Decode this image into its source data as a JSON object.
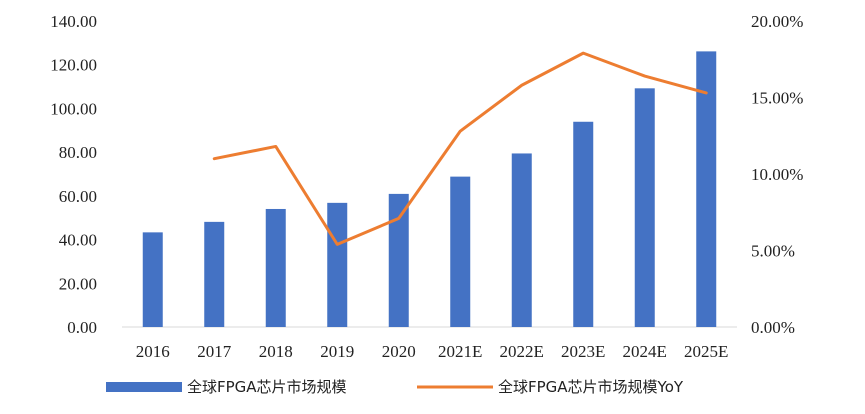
{
  "chart_data": {
    "type": "bar+line",
    "categories": [
      "2016",
      "2017",
      "2018",
      "2019",
      "2020",
      "2021E",
      "2022E",
      "2023E",
      "2024E",
      "2025E"
    ],
    "series": [
      {
        "name": "全球FPGA芯片市场规模",
        "type": "bar",
        "axis": "left",
        "color": "#4472C4",
        "values": [
          43.3,
          48.1,
          54.0,
          56.8,
          60.9,
          68.8,
          79.4,
          93.9,
          109.2,
          126.1
        ]
      },
      {
        "name": "全球FPGA芯片市场规模YoY",
        "type": "line",
        "axis": "right",
        "color": "#ED7D31",
        "values": [
          null,
          11.0,
          11.8,
          5.4,
          7.1,
          12.8,
          15.8,
          17.9,
          16.4,
          15.3
        ]
      }
    ],
    "y_left": {
      "ylim": [
        0,
        140
      ],
      "ticks": [
        "0.00",
        "20.00",
        "40.00",
        "60.00",
        "80.00",
        "100.00",
        "120.00",
        "140.00"
      ]
    },
    "y_right": {
      "ylim": [
        0,
        20
      ],
      "ticks": [
        "0.00%",
        "5.00%",
        "10.00%",
        "15.00%",
        "20.00%"
      ]
    },
    "legend_position": "bottom",
    "grid": false
  }
}
